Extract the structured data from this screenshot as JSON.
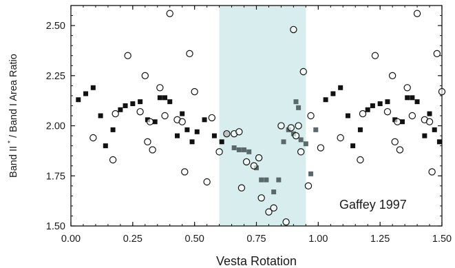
{
  "chart_data": {
    "type": "scatter",
    "xlabel": "Vesta Rotation",
    "ylabel": "Band II",
    "ylabel_sup": "*",
    "ylabel_rest": "/ Band I Area Ratio",
    "annotation": "Gaffey 1997",
    "xlim": [
      0.0,
      1.5
    ],
    "ylim": [
      1.5,
      2.6
    ],
    "x_ticks": [
      "0.00",
      "0.25",
      "0.50",
      "0.75",
      "1.00",
      "1.25",
      "1.50"
    ],
    "y_ticks": [
      "1.50",
      "1.75",
      "2.00",
      "2.25",
      "2.50"
    ],
    "highlight_band": {
      "x0": 0.6,
      "x1": 0.95,
      "color": "#d8eeee"
    },
    "grid": false,
    "series": [
      {
        "marker": "filled-square",
        "color": "#111111",
        "points": [
          [
            0.03,
            2.13
          ],
          [
            0.06,
            2.16
          ],
          [
            0.09,
            2.19
          ],
          [
            0.12,
            2.05
          ],
          [
            0.14,
            1.9
          ],
          [
            0.17,
            1.98
          ],
          [
            0.2,
            2.08
          ],
          [
            0.22,
            2.1
          ],
          [
            0.25,
            2.11
          ],
          [
            0.28,
            2.12
          ],
          [
            0.31,
            2.03
          ],
          [
            0.34,
            2.02
          ],
          [
            0.36,
            2.14
          ],
          [
            0.38,
            2.14
          ],
          [
            0.4,
            2.12
          ],
          [
            0.43,
            1.95
          ],
          [
            0.45,
            2.06
          ],
          [
            0.47,
            1.98
          ],
          [
            0.49,
            1.92
          ],
          [
            0.51,
            1.97
          ],
          [
            0.54,
            2.03
          ],
          [
            0.58,
            1.95
          ],
          [
            0.61,
            1.92
          ],
          [
            1.03,
            2.13
          ],
          [
            1.06,
            2.16
          ],
          [
            1.09,
            2.19
          ],
          [
            1.12,
            2.05
          ],
          [
            1.14,
            1.9
          ],
          [
            1.17,
            1.98
          ],
          [
            1.2,
            2.08
          ],
          [
            1.22,
            2.1
          ],
          [
            1.25,
            2.11
          ],
          [
            1.28,
            2.12
          ],
          [
            1.31,
            2.03
          ],
          [
            1.34,
            2.02
          ],
          [
            1.36,
            2.14
          ],
          [
            1.38,
            2.14
          ],
          [
            1.4,
            2.12
          ],
          [
            1.43,
            1.95
          ],
          [
            1.45,
            2.06
          ],
          [
            1.47,
            1.98
          ],
          [
            1.49,
            1.92
          ]
        ]
      },
      {
        "marker": "gray-square",
        "color": "#5a6a6a",
        "points": [
          [
            0.63,
            1.96
          ],
          [
            0.66,
            1.89
          ],
          [
            0.68,
            1.88
          ],
          [
            0.7,
            1.88
          ],
          [
            0.72,
            1.87
          ],
          [
            0.75,
            1.79
          ],
          [
            0.77,
            1.73
          ],
          [
            0.79,
            1.73
          ],
          [
            0.82,
            1.67
          ],
          [
            0.84,
            1.73
          ],
          [
            0.86,
            1.92
          ],
          [
            0.88,
            1.98
          ],
          [
            0.9,
            1.96
          ],
          [
            0.91,
            2.12
          ],
          [
            0.92,
            2.09
          ],
          [
            0.93,
            1.93
          ],
          [
            0.95,
            1.91
          ],
          [
            0.97,
            1.76
          ],
          [
            0.99,
            1.98
          ]
        ]
      },
      {
        "marker": "open-circle",
        "color": "#111111",
        "points": [
          [
            0.09,
            1.94
          ],
          [
            0.17,
            1.83
          ],
          [
            0.18,
            2.06
          ],
          [
            0.23,
            2.35
          ],
          [
            0.28,
            2.07
          ],
          [
            0.3,
            2.25
          ],
          [
            0.31,
            1.92
          ],
          [
            0.32,
            2.02
          ],
          [
            0.33,
            1.88
          ],
          [
            0.36,
            2.19
          ],
          [
            0.38,
            2.05
          ],
          [
            0.4,
            2.56
          ],
          [
            0.43,
            2.03
          ],
          [
            0.45,
            2.02
          ],
          [
            0.46,
            1.77
          ],
          [
            0.48,
            2.36
          ],
          [
            0.5,
            2.17
          ],
          [
            0.55,
            1.72
          ],
          [
            0.57,
            2.04
          ],
          [
            0.6,
            1.87
          ],
          [
            0.63,
            1.96
          ],
          [
            0.66,
            1.96
          ],
          [
            0.68,
            1.97
          ],
          [
            0.69,
            1.69
          ],
          [
            0.71,
            1.82
          ],
          [
            0.74,
            1.8
          ],
          [
            0.76,
            1.84
          ],
          [
            0.77,
            1.64
          ],
          [
            0.8,
            1.57
          ],
          [
            0.82,
            1.59
          ],
          [
            0.85,
            2.0
          ],
          [
            0.87,
            1.52
          ],
          [
            0.89,
            1.99
          ],
          [
            0.9,
            2.48
          ],
          [
            0.91,
            1.95
          ],
          [
            0.92,
            2.0
          ],
          [
            0.93,
            1.87
          ],
          [
            0.94,
            2.27
          ],
          [
            0.96,
            1.7
          ],
          [
            0.97,
            2.05
          ],
          [
            1.01,
            1.89
          ],
          [
            1.09,
            1.94
          ],
          [
            1.17,
            1.83
          ],
          [
            1.18,
            2.06
          ],
          [
            1.23,
            2.35
          ],
          [
            1.28,
            2.07
          ],
          [
            1.3,
            2.25
          ],
          [
            1.31,
            1.92
          ],
          [
            1.32,
            2.02
          ],
          [
            1.33,
            1.88
          ],
          [
            1.36,
            2.19
          ],
          [
            1.38,
            2.05
          ],
          [
            1.4,
            2.56
          ],
          [
            1.43,
            2.03
          ],
          [
            1.45,
            2.02
          ],
          [
            1.46,
            1.77
          ],
          [
            1.48,
            2.36
          ],
          [
            1.5,
            2.17
          ]
        ]
      }
    ]
  }
}
